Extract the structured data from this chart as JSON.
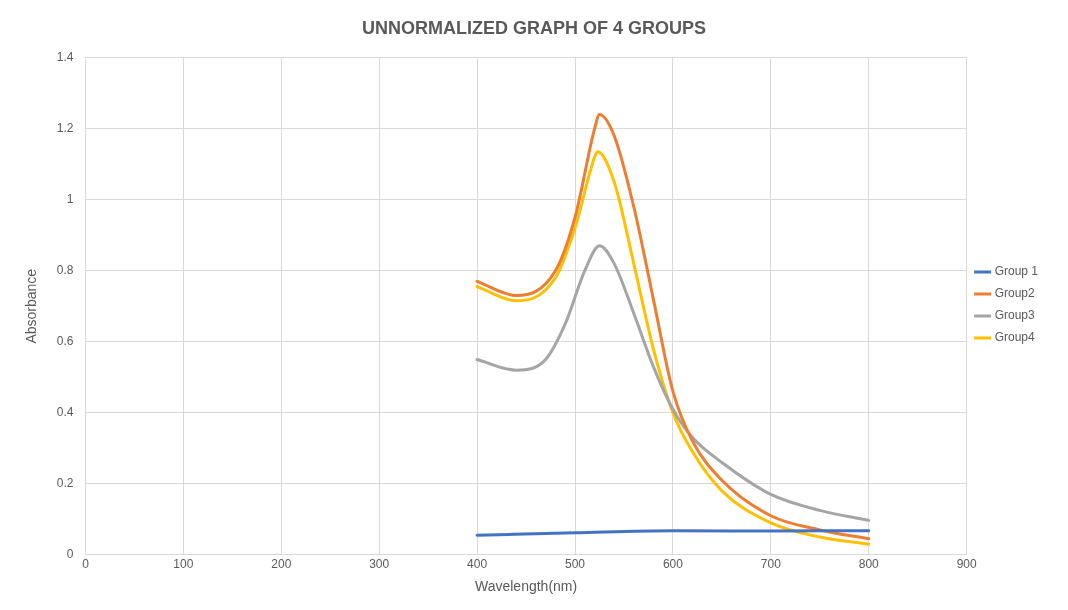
{
  "chart_data": {
    "type": "line",
    "title": "UNNORMALIZED GRAPH OF 4 GROUPS",
    "xlabel": "Wavelength(nm)",
    "ylabel": "Absorbance",
    "xlim": [
      0,
      900
    ],
    "xticks": [
      0,
      100,
      200,
      300,
      400,
      500,
      600,
      700,
      800,
      900
    ],
    "ylim": [
      0,
      1.4
    ],
    "yticks": [
      0,
      0.2,
      0.4,
      0.6,
      0.8,
      1,
      1.2,
      1.4
    ],
    "grid": true,
    "legend": "right",
    "marker": "none",
    "line_style": "solid",
    "series": [
      {
        "name": "Group 1",
        "color": "#4472c4",
        "x": [
          400,
          500,
          600,
          700,
          800
        ],
        "values": [
          0.055,
          0.062,
          0.068,
          0.067,
          0.068
        ]
      },
      {
        "name": "Group2",
        "color": "#ed7d31",
        "x": [
          400,
          440,
          480,
          500,
          520,
          525,
          540,
          560,
          580,
          600,
          620,
          650,
          700,
          750,
          800
        ],
        "values": [
          0.77,
          0.73,
          0.8,
          0.95,
          1.2,
          1.24,
          1.18,
          0.98,
          0.72,
          0.46,
          0.32,
          0.21,
          0.11,
          0.07,
          0.045
        ]
      },
      {
        "name": "Group3",
        "color": "#a5a5a5",
        "x": [
          400,
          440,
          470,
          490,
          510,
          525,
          540,
          560,
          580,
          600,
          620,
          650,
          700,
          750,
          800
        ],
        "values": [
          0.55,
          0.52,
          0.55,
          0.65,
          0.8,
          0.87,
          0.82,
          0.68,
          0.53,
          0.41,
          0.33,
          0.26,
          0.17,
          0.125,
          0.097
        ]
      },
      {
        "name": "Group4",
        "color": "#ffc000",
        "x": [
          400,
          440,
          480,
          500,
          520,
          523,
          540,
          560,
          580,
          600,
          620,
          650,
          700,
          750,
          800
        ],
        "values": [
          0.755,
          0.715,
          0.78,
          0.92,
          1.12,
          1.135,
          1.05,
          0.82,
          0.58,
          0.4,
          0.29,
          0.18,
          0.09,
          0.05,
          0.03
        ]
      }
    ]
  }
}
